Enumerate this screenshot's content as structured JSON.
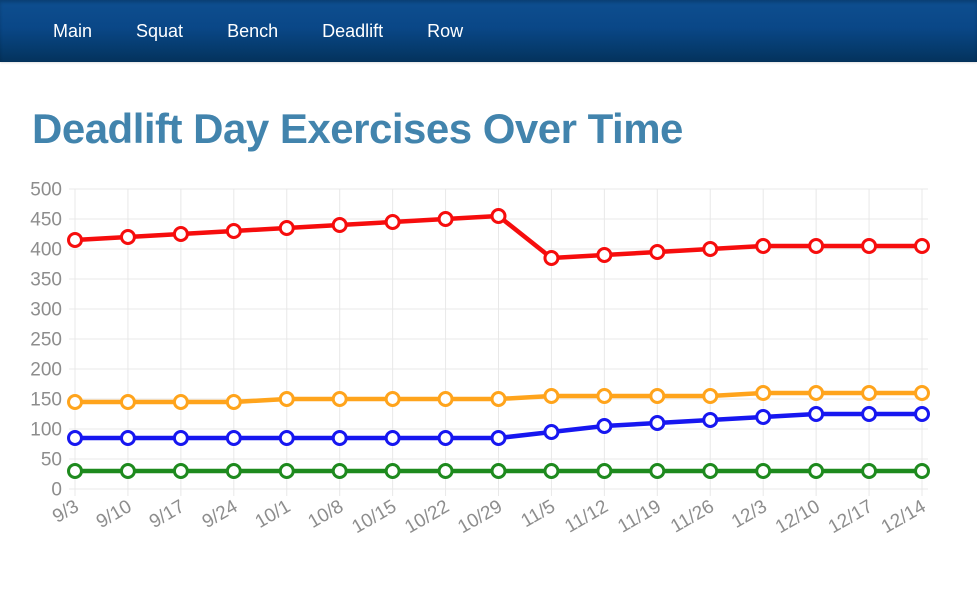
{
  "navbar": {
    "items": [
      {
        "label": "Main"
      },
      {
        "label": "Squat"
      },
      {
        "label": "Bench"
      },
      {
        "label": "Deadlift"
      },
      {
        "label": "Row"
      }
    ]
  },
  "page": {
    "title": "Deadlift Day Exercises Over Time"
  },
  "theme": {
    "navbar_top": "#0d4d8e",
    "navbar_bottom": "#04325c",
    "nav_text": "#ffffff",
    "title_color": "#4284ad",
    "axis_text_color": "#8d8d8d",
    "gridline_color": "#e8e8e8"
  },
  "chart_data": {
    "type": "line",
    "title": "",
    "xlabel": "",
    "ylabel": "",
    "categories": [
      "9/3",
      "9/10",
      "9/17",
      "9/24",
      "10/1",
      "10/8",
      "10/15",
      "10/22",
      "10/29",
      "11/5",
      "11/12",
      "11/19",
      "11/26",
      "12/3",
      "12/10",
      "12/17",
      "12/14"
    ],
    "series": [
      {
        "name": "red",
        "color": "#f60d0d",
        "values": [
          415,
          420,
          425,
          430,
          435,
          440,
          445,
          450,
          455,
          385,
          390,
          395,
          400,
          405,
          405,
          405,
          405
        ]
      },
      {
        "name": "orange",
        "color": "#ffa41c",
        "values": [
          145,
          145,
          145,
          145,
          150,
          150,
          150,
          150,
          150,
          155,
          155,
          155,
          155,
          160,
          160,
          160,
          160
        ]
      },
      {
        "name": "blue",
        "color": "#1717f0",
        "values": [
          85,
          85,
          85,
          85,
          85,
          85,
          85,
          85,
          85,
          95,
          105,
          110,
          115,
          120,
          125,
          125,
          125
        ]
      },
      {
        "name": "green",
        "color": "#1e8a1e",
        "values": [
          30,
          30,
          30,
          30,
          30,
          30,
          30,
          30,
          30,
          30,
          30,
          30,
          30,
          30,
          30,
          30,
          30
        ]
      }
    ],
    "ylim": [
      0,
      500
    ],
    "ytick_step": 50,
    "grid": true,
    "legend": "none",
    "x_tick_rotation_deg": -30,
    "marker": "open-circle"
  }
}
